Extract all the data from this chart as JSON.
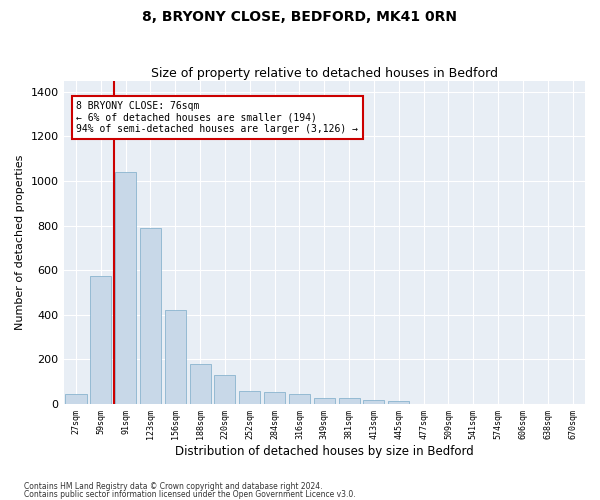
{
  "title": "8, BRYONY CLOSE, BEDFORD, MK41 0RN",
  "subtitle": "Size of property relative to detached houses in Bedford",
  "xlabel": "Distribution of detached houses by size in Bedford",
  "ylabel": "Number of detached properties",
  "footnote1": "Contains HM Land Registry data © Crown copyright and database right 2024.",
  "footnote2": "Contains public sector information licensed under the Open Government Licence v3.0.",
  "annotation_line1": "8 BRYONY CLOSE: 76sqm",
  "annotation_line2": "← 6% of detached houses are smaller (194)",
  "annotation_line3": "94% of semi-detached houses are larger (3,126) →",
  "bar_categories": [
    "27sqm",
    "59sqm",
    "91sqm",
    "123sqm",
    "156sqm",
    "188sqm",
    "220sqm",
    "252sqm",
    "284sqm",
    "316sqm",
    "349sqm",
    "381sqm",
    "413sqm",
    "445sqm",
    "477sqm",
    "509sqm",
    "541sqm",
    "574sqm",
    "606sqm",
    "638sqm",
    "670sqm"
  ],
  "bar_values": [
    45,
    575,
    1040,
    790,
    420,
    180,
    130,
    58,
    55,
    45,
    27,
    27,
    18,
    12,
    0,
    0,
    0,
    0,
    0,
    0,
    0
  ],
  "bar_color": "#c8d8e8",
  "bar_edge_color": "#7aaac8",
  "ylim": [
    0,
    1450
  ],
  "yticks": [
    0,
    200,
    400,
    600,
    800,
    1000,
    1200,
    1400
  ],
  "title_fontsize": 10,
  "subtitle_fontsize": 9,
  "annotation_box_color": "#ffffff",
  "annotation_box_edge": "#cc0000",
  "red_line_color": "#cc0000",
  "background_color": "#ffffff",
  "plot_bg_color": "#e8eef5"
}
